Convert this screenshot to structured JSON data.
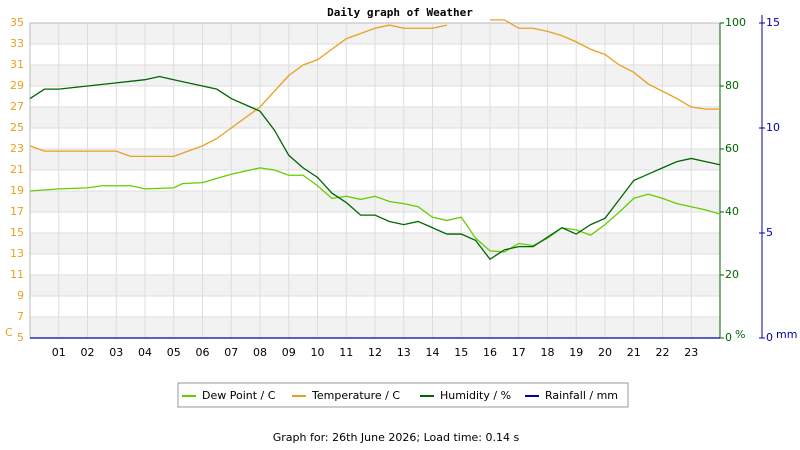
{
  "chart_data": {
    "type": "line",
    "title": "Daily graph of Weather",
    "footer": "Graph for: 26th June 2026; Load time: 0.14 s",
    "xlim": [
      0,
      24
    ],
    "xticks": [
      {
        "value": 1,
        "label": "01"
      },
      {
        "value": 2,
        "label": "02"
      },
      {
        "value": 3,
        "label": "03"
      },
      {
        "value": 4,
        "label": "04"
      },
      {
        "value": 5,
        "label": "05"
      },
      {
        "value": 6,
        "label": "06"
      },
      {
        "value": 7,
        "label": "07"
      },
      {
        "value": 8,
        "label": "08"
      },
      {
        "value": 9,
        "label": "09"
      },
      {
        "value": 10,
        "label": "10"
      },
      {
        "value": 11,
        "label": "11"
      },
      {
        "value": 12,
        "label": "12"
      },
      {
        "value": 13,
        "label": "13"
      },
      {
        "value": 14,
        "label": "14"
      },
      {
        "value": 15,
        "label": "15"
      },
      {
        "value": 16,
        "label": "16"
      },
      {
        "value": 17,
        "label": "17"
      },
      {
        "value": 18,
        "label": "18"
      },
      {
        "value": 19,
        "label": "19"
      },
      {
        "value": 20,
        "label": "20"
      },
      {
        "value": 21,
        "label": "21"
      },
      {
        "value": 22,
        "label": "22"
      },
      {
        "value": 23,
        "label": "23"
      }
    ],
    "ylim": [
      5,
      35
    ],
    "yticks": [
      5,
      7,
      9,
      11,
      13,
      15,
      17,
      19,
      21,
      23,
      25,
      27,
      29,
      31,
      33,
      35
    ],
    "y_unit": "C",
    "y2lim": [
      0,
      100
    ],
    "y2ticks": [
      0,
      20,
      40,
      60,
      80,
      100
    ],
    "y2_unit": "%",
    "y3lim": [
      0,
      15
    ],
    "y3ticks": [
      0,
      5,
      10,
      15
    ],
    "y3_unit": "mm",
    "grid": true,
    "series": [
      {
        "name": "Dew Point / C",
        "color": "#66cc00",
        "x": [
          0,
          1,
          2,
          2.5,
          3,
          3.5,
          4,
          5,
          5.3,
          6,
          6.5,
          7,
          7.5,
          8,
          8.5,
          9,
          9.5,
          10,
          10.5,
          11,
          11.5,
          12,
          12.5,
          13,
          13.5,
          14,
          14.5,
          15,
          15.5,
          16,
          16.5,
          17,
          17.5,
          18,
          18.5,
          19,
          19.5,
          20,
          20.5,
          21,
          21.5,
          22,
          22.5,
          23,
          23.5,
          24
        ],
        "values": [
          19,
          19.2,
          19.3,
          19.5,
          19.5,
          19.5,
          19.2,
          19.3,
          19.7,
          19.8,
          20.2,
          20.6,
          20.9,
          21.2,
          21,
          20.5,
          20.5,
          19.5,
          18.3,
          18.5,
          18.2,
          18.5,
          18,
          17.8,
          17.5,
          16.5,
          16.2,
          16.5,
          14.5,
          13.3,
          13.2,
          14,
          13.8,
          14.5,
          15.5,
          15.3,
          14.8,
          15.8,
          17,
          18.3,
          18.7,
          18.3,
          17.8,
          17.5,
          17.2,
          16.8
        ]
      },
      {
        "name": "Temperature / C",
        "color": "#e8a020",
        "x": [
          0,
          0.5,
          1,
          2,
          3,
          3.5,
          4,
          5,
          5.5,
          6,
          6.5,
          7,
          7.5,
          8,
          8.5,
          9,
          9.5,
          10,
          10.5,
          11,
          11.5,
          12,
          12.5,
          13,
          13.5,
          14,
          14.5,
          15.2,
          15.5,
          16,
          16.5,
          17,
          17.5,
          18,
          18.5,
          19,
          19.5,
          20,
          20.5,
          21,
          21.5,
          22,
          22.5,
          23,
          23.5,
          24
        ],
        "values": [
          23.3,
          22.8,
          22.8,
          22.8,
          22.8,
          22.3,
          22.3,
          22.3,
          22.8,
          23.3,
          24,
          25,
          26,
          27,
          28.5,
          30,
          31,
          31.5,
          32.5,
          33.5,
          34,
          34.5,
          34.8,
          34.5,
          34.5,
          34.5,
          34.8,
          null,
          null,
          35.3,
          35.3,
          34.5,
          34.5,
          34.2,
          33.8,
          33.2,
          32.5,
          32,
          31,
          30.3,
          29.2,
          28.5,
          27.8,
          27,
          26.8,
          26.8
        ]
      },
      {
        "name": "Humidity / %",
        "color": "#006600",
        "axis": "y2",
        "x": [
          0,
          0.5,
          1,
          2,
          3,
          4,
          4.5,
          5,
          6,
          6.5,
          7,
          7.5,
          8,
          8.5,
          9,
          9.5,
          10,
          10.5,
          11,
          11.5,
          12,
          12.5,
          13,
          13.5,
          14,
          14.5,
          15,
          15.5,
          16,
          16.5,
          17,
          17.5,
          18,
          18.5,
          19,
          19.5,
          20,
          20.5,
          21,
          21.5,
          22,
          22.5,
          23,
          23.5,
          24
        ],
        "values": [
          76,
          79,
          79,
          80,
          81,
          82,
          83,
          82,
          80,
          79,
          76,
          74,
          72,
          66,
          58,
          54,
          51,
          46,
          43,
          39,
          39,
          37,
          36,
          37,
          35,
          33,
          33,
          31,
          25,
          28,
          29,
          29,
          32,
          35,
          33,
          36,
          38,
          44,
          50,
          52,
          54,
          56,
          57,
          56,
          55
        ]
      },
      {
        "name": "Rainfall / mm",
        "color": "#0000aa",
        "axis": "y3",
        "x": [
          0,
          24
        ],
        "values": [
          0,
          0
        ]
      }
    ]
  }
}
